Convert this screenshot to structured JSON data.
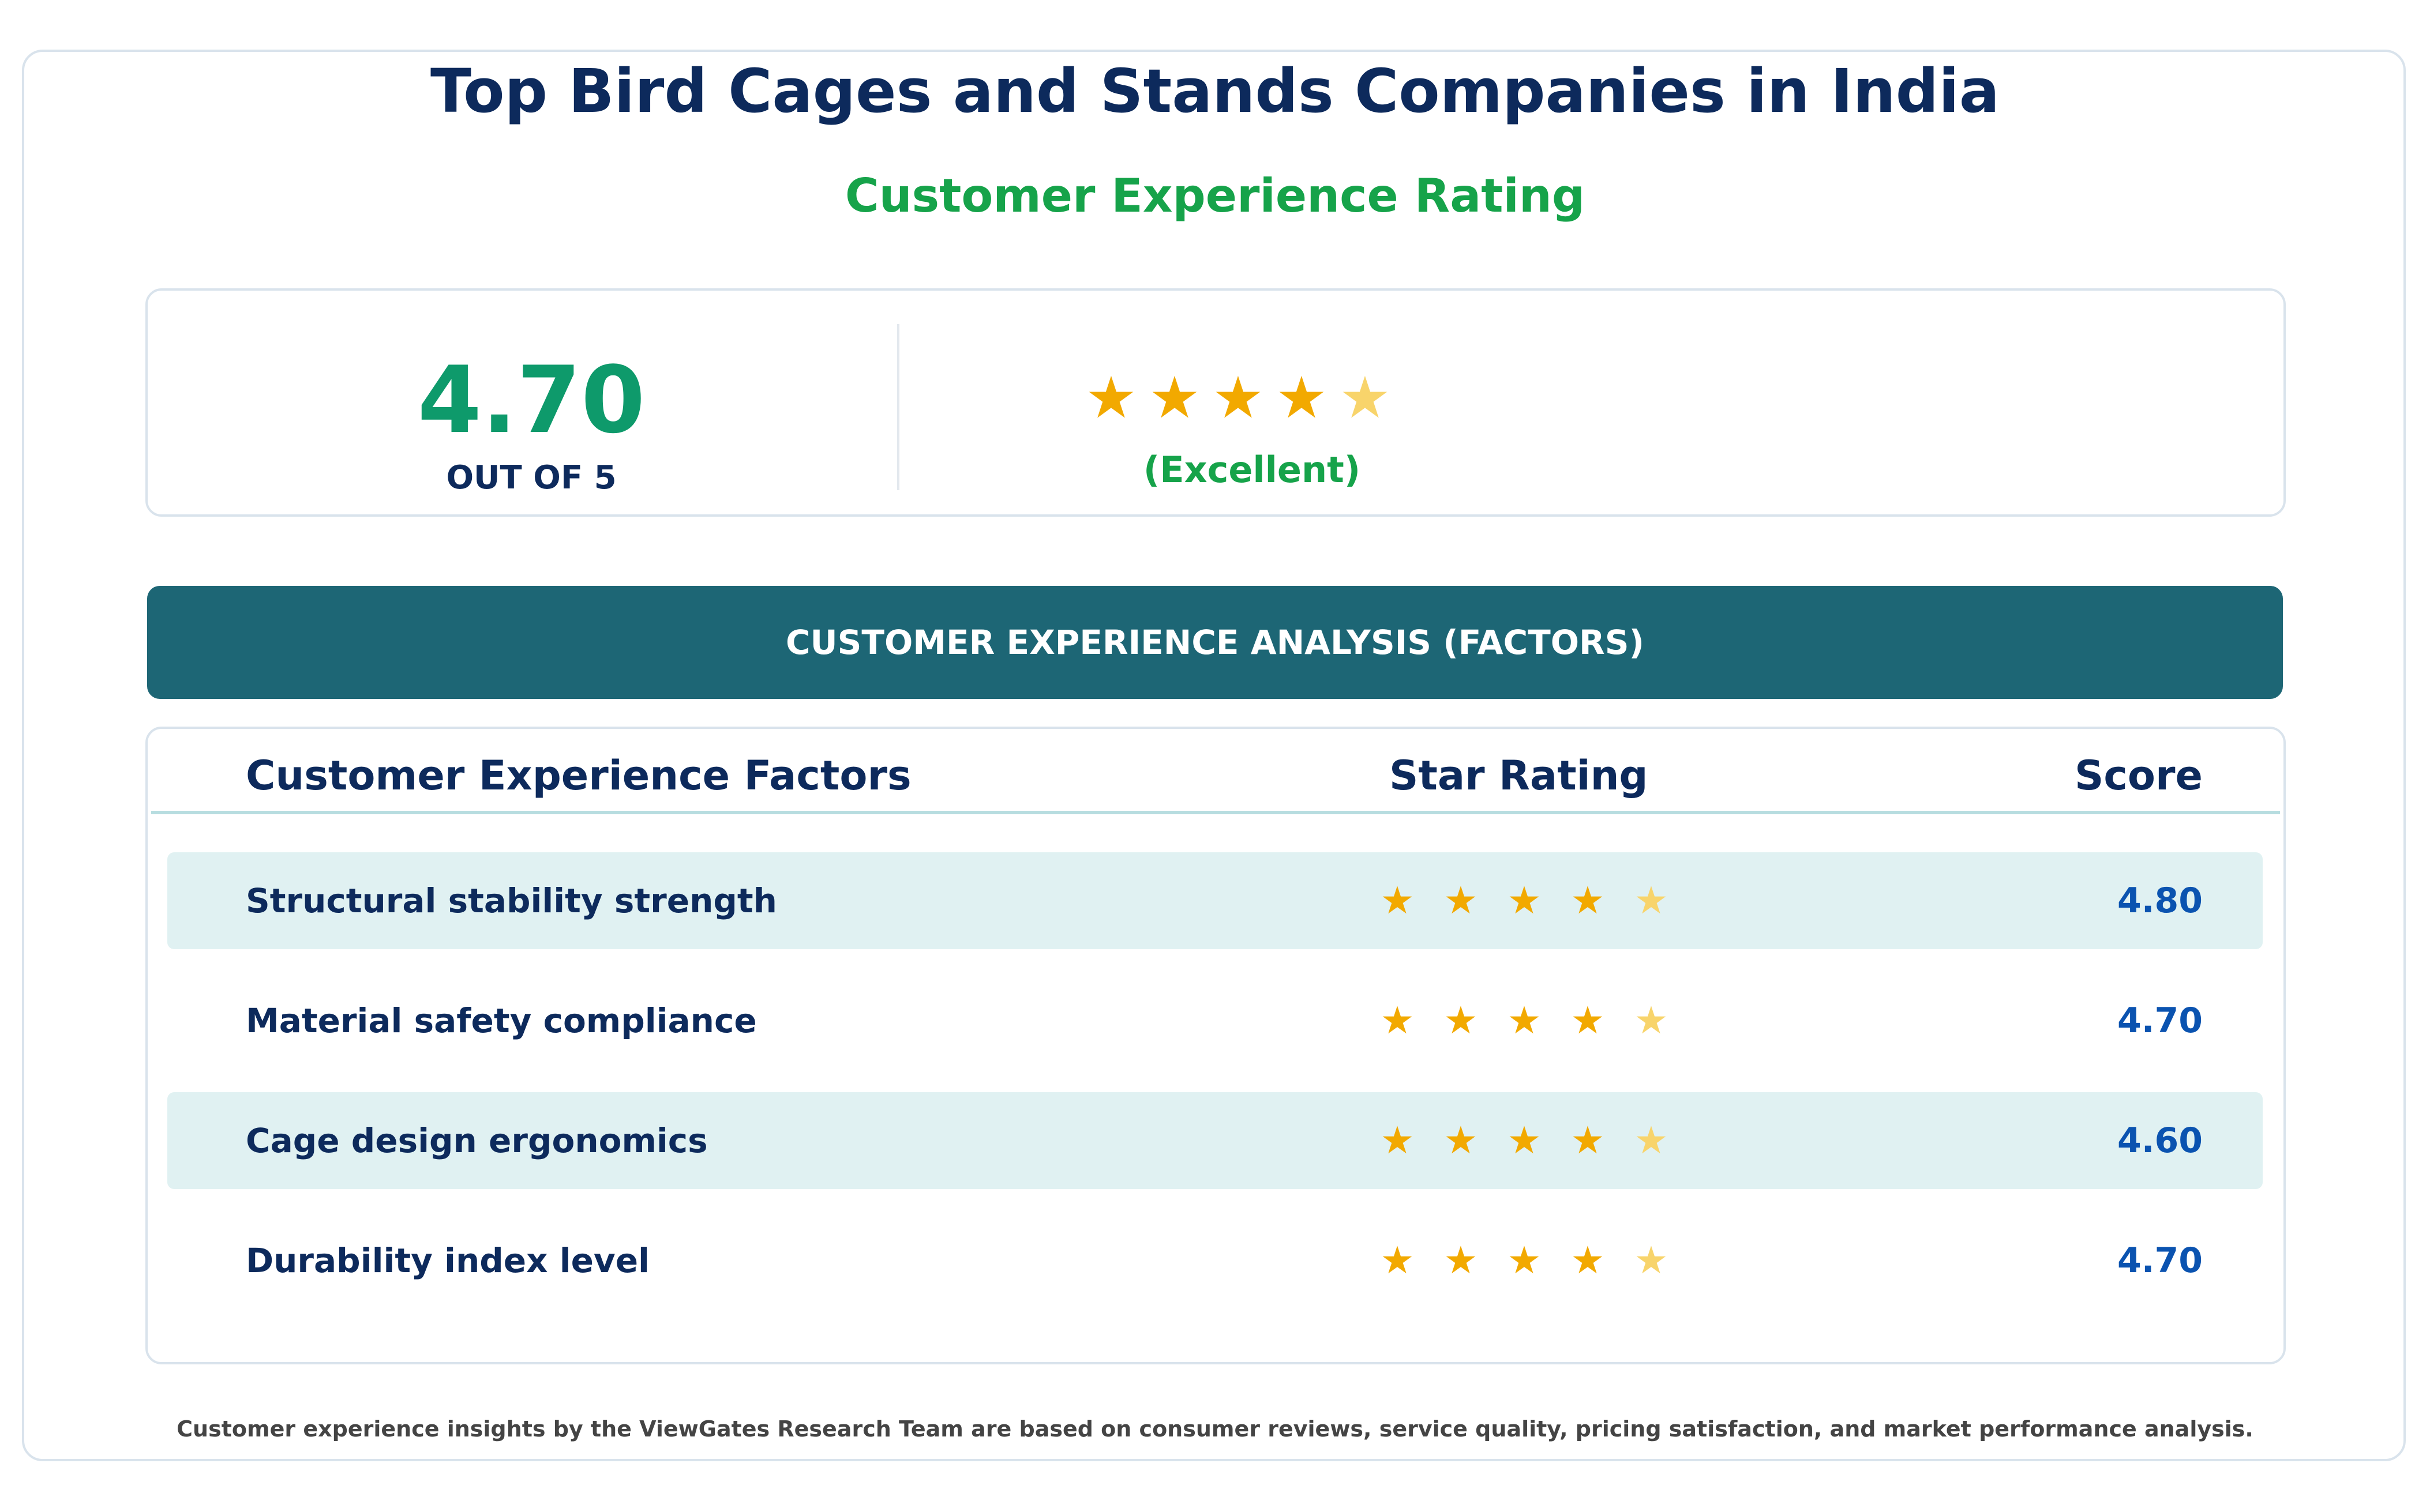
{
  "page": {
    "title": "Top Bird Cages and Stands Companies in India",
    "subtitle": "Customer Experience Rating"
  },
  "summary": {
    "score": "4.70",
    "out_of": "OUT OF 5",
    "stars_value": 4.7,
    "star_glyph": "★",
    "verdict": "(Excellent)"
  },
  "section": {
    "banner": "CUSTOMER EXPERIENCE ANALYSIS (FACTORS)"
  },
  "table": {
    "headers": {
      "factor": "Customer Experience Factors",
      "rating": "Star Rating",
      "score": "Score"
    },
    "rows": [
      {
        "factor": "Structural stability strength",
        "score": "4.80",
        "stars_value": 4.8
      },
      {
        "factor": "Material safety compliance",
        "score": "4.70",
        "stars_value": 4.7
      },
      {
        "factor": "Cage design ergonomics",
        "score": "4.60",
        "stars_value": 4.6
      },
      {
        "factor": "Durability index level",
        "score": "4.70",
        "stars_value": 4.7
      }
    ]
  },
  "footer": {
    "note": "Customer experience insights by the ViewGates Research Team are based on consumer reviews, service quality, pricing satisfaction, and market performance analysis."
  },
  "colors": {
    "title": "#0d2a5c",
    "accent_green": "#16a34a",
    "score_green": "#0e9a6b",
    "banner": "#1d6675",
    "star_full": "#f2a900",
    "star_partial": "#f8d46b",
    "score_blue": "#0b53b0",
    "row_shade": "#e0f1f2"
  },
  "icons": {
    "star": "star-icon"
  }
}
